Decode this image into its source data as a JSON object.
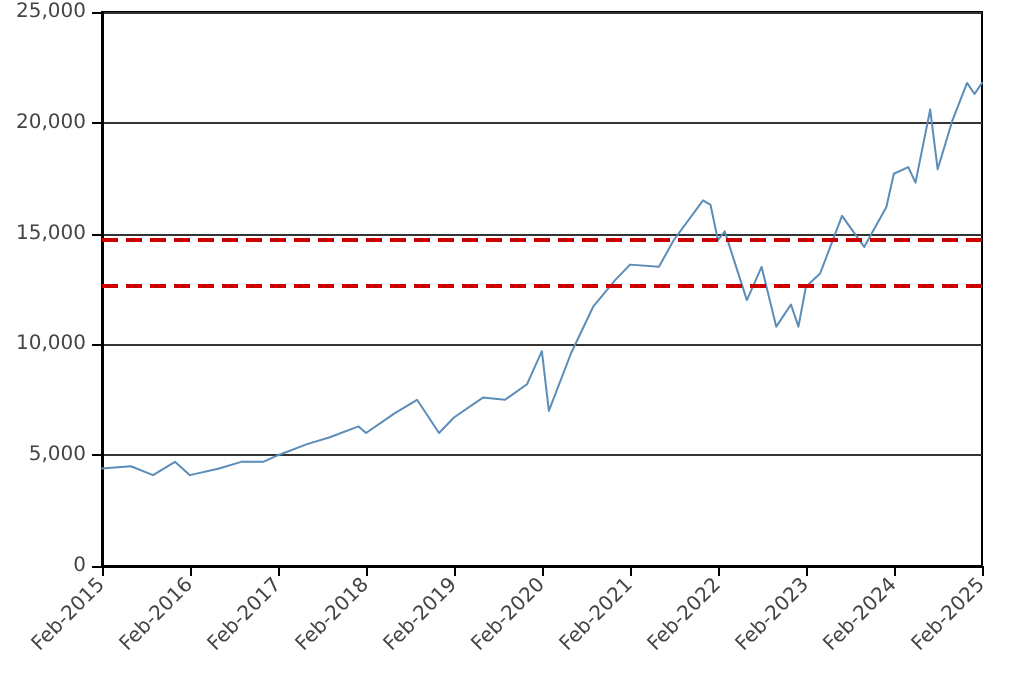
{
  "chart_data": {
    "type": "line",
    "x": [
      "2015-02",
      "2015-06",
      "2015-09",
      "2015-12",
      "2016-02",
      "2016-06",
      "2016-09",
      "2016-12",
      "2017-02",
      "2017-06",
      "2017-09",
      "2018-01",
      "2018-02",
      "2018-06",
      "2018-09",
      "2018-12",
      "2019-02",
      "2019-06",
      "2019-09",
      "2019-12",
      "2020-02",
      "2020-03",
      "2020-06",
      "2020-09",
      "2020-12",
      "2021-02",
      "2021-06",
      "2021-08",
      "2021-12",
      "2022-01",
      "2022-02",
      "2022-03",
      "2022-06",
      "2022-08",
      "2022-10",
      "2022-12",
      "2023-01",
      "2023-02",
      "2023-04",
      "2023-07",
      "2023-10",
      "2024-01",
      "2024-02",
      "2024-04",
      "2024-05",
      "2024-07",
      "2024-08",
      "2024-10",
      "2024-12",
      "2025-01",
      "2025-02"
    ],
    "series": [
      {
        "color": "#5b8db8",
        "values": [
          4400,
          4500,
          4100,
          4700,
          4100,
          4400,
          4700,
          4700,
          5000,
          5500,
          5800,
          6300,
          6000,
          6900,
          7500,
          6000,
          6700,
          7600,
          7500,
          8200,
          9700,
          7000,
          9600,
          11700,
          12900,
          13600,
          13500,
          14700,
          16500,
          16300,
          14700,
          15100,
          12000,
          13500,
          10800,
          11800,
          10800,
          12600,
          13200,
          15800,
          14400,
          16200,
          17700,
          18000,
          17300,
          20600,
          17900,
          20100,
          21800,
          21300,
          21800
        ]
      }
    ],
    "xlim": [
      "2015-02",
      "2025-02"
    ],
    "xticks": [
      {
        "value": "2015-02",
        "label": "Feb-2015"
      },
      {
        "value": "2016-02",
        "label": "Feb-2016"
      },
      {
        "value": "2017-02",
        "label": "Feb-2017"
      },
      {
        "value": "2018-02",
        "label": "Feb-2018"
      },
      {
        "value": "2019-02",
        "label": "Feb-2019"
      },
      {
        "value": "2020-02",
        "label": "Feb-2020"
      },
      {
        "value": "2021-02",
        "label": "Feb-2021"
      },
      {
        "value": "2022-02",
        "label": "Feb-2022"
      },
      {
        "value": "2023-02",
        "label": "Feb-2023"
      },
      {
        "value": "2024-02",
        "label": "Feb-2024"
      },
      {
        "value": "2025-02",
        "label": "Feb-2025"
      }
    ],
    "ylim": [
      0,
      25000
    ],
    "yticks": [
      0,
      {
        "value": 5000,
        "label": "5,000"
      },
      {
        "value": 10000,
        "label": "10,000"
      },
      {
        "value": 15000,
        "label": "15,000"
      },
      {
        "value": 20000,
        "label": "20,000"
      },
      {
        "value": 25000,
        "label": "25,000"
      }
    ],
    "ref_lines": [
      {
        "axis": "y",
        "value": 14700,
        "color": "#cc0000",
        "line_style": "dashed"
      },
      {
        "axis": "y",
        "value": 12700,
        "color": "#cc0000",
        "line_style": "dashed"
      }
    ],
    "grid": "y",
    "marker": "none",
    "line_style": "solid"
  }
}
